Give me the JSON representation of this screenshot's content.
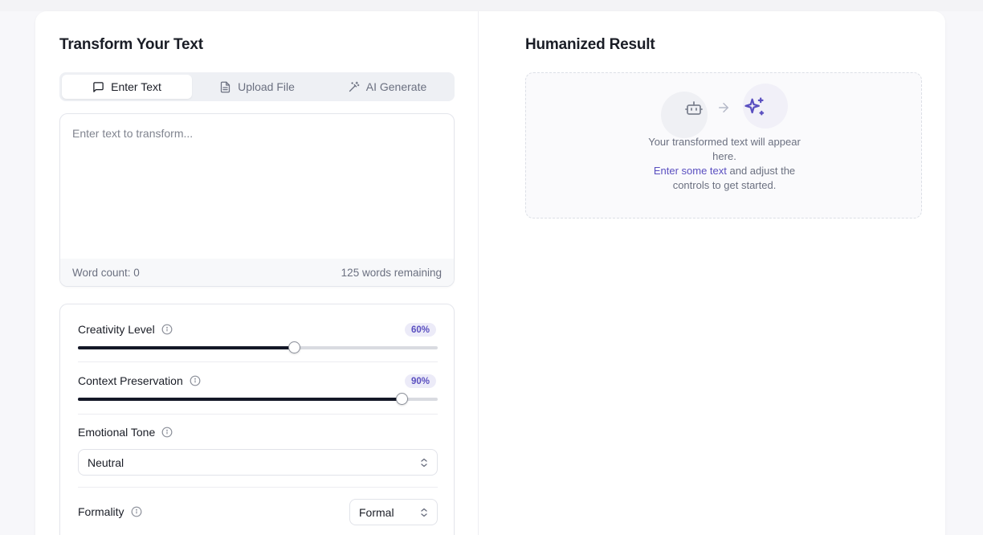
{
  "left_panel": {
    "title": "Transform Your Text",
    "tabs": [
      {
        "label": "Enter Text",
        "icon": "message-square-icon",
        "active": true
      },
      {
        "label": "Upload File",
        "icon": "file-text-icon",
        "active": false
      },
      {
        "label": "AI Generate",
        "icon": "magic-wand-icon",
        "active": false
      }
    ],
    "input": {
      "placeholder": "Enter text to transform...",
      "value": "",
      "word_count": "Word count: 0",
      "words_remaining": "125 words remaining"
    },
    "controls": {
      "creativity": {
        "label": "Creativity Level",
        "badge": "60%",
        "value": 0.6
      },
      "context": {
        "label": "Context Preservation",
        "badge": "90%",
        "value": 0.9
      },
      "tone": {
        "label": "Emotional Tone",
        "selected": "Neutral"
      },
      "formality": {
        "label": "Formality",
        "selected": "Formal"
      }
    }
  },
  "right_panel": {
    "title": "Humanized Result",
    "empty_state": {
      "line1": "Your transformed text will appear here.",
      "link": "Enter some text",
      "line2": " and adjust the controls to get started."
    },
    "icons": [
      "bot-icon",
      "arrow-right-icon",
      "sparkles-icon"
    ]
  },
  "colors": {
    "accent": "#5a4fc0",
    "slider_fill": "#141827",
    "badge_bg": "#ecebf8"
  }
}
